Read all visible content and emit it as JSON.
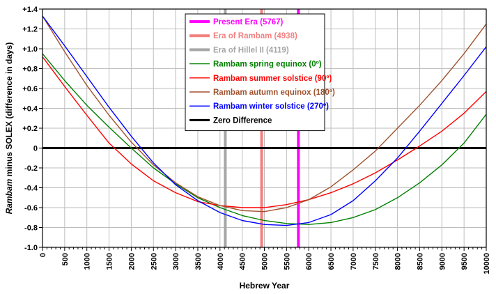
{
  "chart_data": {
    "type": "line",
    "xlabel": "Hebrew Year",
    "ylabel_italic": "Rambam",
    "ylabel_rest": " minus SOLEX (difference in days)",
    "xlim": [
      0,
      10000
    ],
    "ylim": [
      -1.0,
      1.4
    ],
    "x_ticks": [
      0,
      500,
      1000,
      1500,
      2000,
      2500,
      3000,
      3500,
      4000,
      4500,
      5000,
      5500,
      6000,
      6500,
      7000,
      7500,
      8000,
      8500,
      9000,
      9500,
      10000
    ],
    "x_minor_step": 100,
    "y_ticks": [
      -1.0,
      -0.8,
      -0.6,
      -0.4,
      -0.2,
      0,
      0.2,
      0.4,
      0.6,
      0.8,
      1.0,
      1.2,
      1.4
    ],
    "y_tick_labels": [
      "-1.0",
      "-0.8",
      "-0.6",
      "-0.4",
      "-0.2",
      "0",
      "+0.2",
      "+0.4",
      "+0.6",
      "+0.8",
      "+1.0",
      "+1.2",
      "+1.4"
    ],
    "grid": true,
    "legend_position": "top-center",
    "vertical_lines": [
      {
        "name": "Present Era (5767)",
        "x": 5767,
        "color": "#ff00ff"
      },
      {
        "name": "Era of Rambam (4938)",
        "x": 4938,
        "color": "#f28080"
      },
      {
        "name": "Era of Hillel II (4119)",
        "x": 4119,
        "color": "#a6a6a6"
      }
    ],
    "series": [
      {
        "name": "Rambam spring equinox (0º)",
        "color": "#008000",
        "x": [
          0,
          500,
          1000,
          1500,
          2000,
          2500,
          3000,
          3500,
          4000,
          4500,
          5000,
          5500,
          6000,
          6500,
          7000,
          7500,
          8000,
          8500,
          9000,
          9500,
          10000
        ],
        "y": [
          0.95,
          0.68,
          0.43,
          0.21,
          0.0,
          -0.2,
          -0.36,
          -0.5,
          -0.6,
          -0.68,
          -0.73,
          -0.76,
          -0.77,
          -0.75,
          -0.7,
          -0.62,
          -0.5,
          -0.35,
          -0.17,
          0.05,
          0.34
        ]
      },
      {
        "name": "Rambam summer solstice (90º)",
        "color": "#ff0000",
        "x": [
          0,
          500,
          1000,
          1500,
          2000,
          2500,
          3000,
          3500,
          4000,
          4500,
          5000,
          5500,
          6000,
          6500,
          7000,
          7500,
          8000,
          8500,
          9000,
          9500,
          10000
        ],
        "y": [
          0.92,
          0.62,
          0.33,
          0.05,
          -0.16,
          -0.33,
          -0.45,
          -0.54,
          -0.58,
          -0.6,
          -0.6,
          -0.57,
          -0.52,
          -0.45,
          -0.36,
          -0.25,
          -0.12,
          0.02,
          0.17,
          0.35,
          0.57
        ]
      },
      {
        "name": "Rambam autumn equinox (180º)",
        "color": "#a0522d",
        "x": [
          0,
          500,
          1000,
          1500,
          2000,
          2500,
          3000,
          3500,
          4000,
          4500,
          5000,
          5500,
          6000,
          6500,
          7000,
          7500,
          8000,
          8500,
          9000,
          9500,
          10000
        ],
        "y": [
          1.33,
          0.97,
          0.63,
          0.33,
          0.06,
          -0.17,
          -0.35,
          -0.49,
          -0.58,
          -0.63,
          -0.64,
          -0.6,
          -0.52,
          -0.39,
          -0.22,
          -0.03,
          0.2,
          0.43,
          0.68,
          0.95,
          1.25
        ]
      },
      {
        "name": "Rambam winter solstice (270º)",
        "color": "#0000ff",
        "x": [
          0,
          500,
          1000,
          1500,
          2000,
          2500,
          3000,
          3500,
          4000,
          4500,
          5000,
          5500,
          6000,
          6500,
          7000,
          7500,
          8000,
          8500,
          9000,
          9500,
          10000
        ],
        "y": [
          1.33,
          1.03,
          0.72,
          0.41,
          0.12,
          -0.15,
          -0.37,
          -0.53,
          -0.65,
          -0.73,
          -0.77,
          -0.78,
          -0.75,
          -0.67,
          -0.53,
          -0.33,
          -0.1,
          0.17,
          0.45,
          0.73,
          1.02
        ]
      }
    ],
    "reference_line": {
      "name": "Zero Difference",
      "y": 0,
      "color": "#000000"
    }
  }
}
